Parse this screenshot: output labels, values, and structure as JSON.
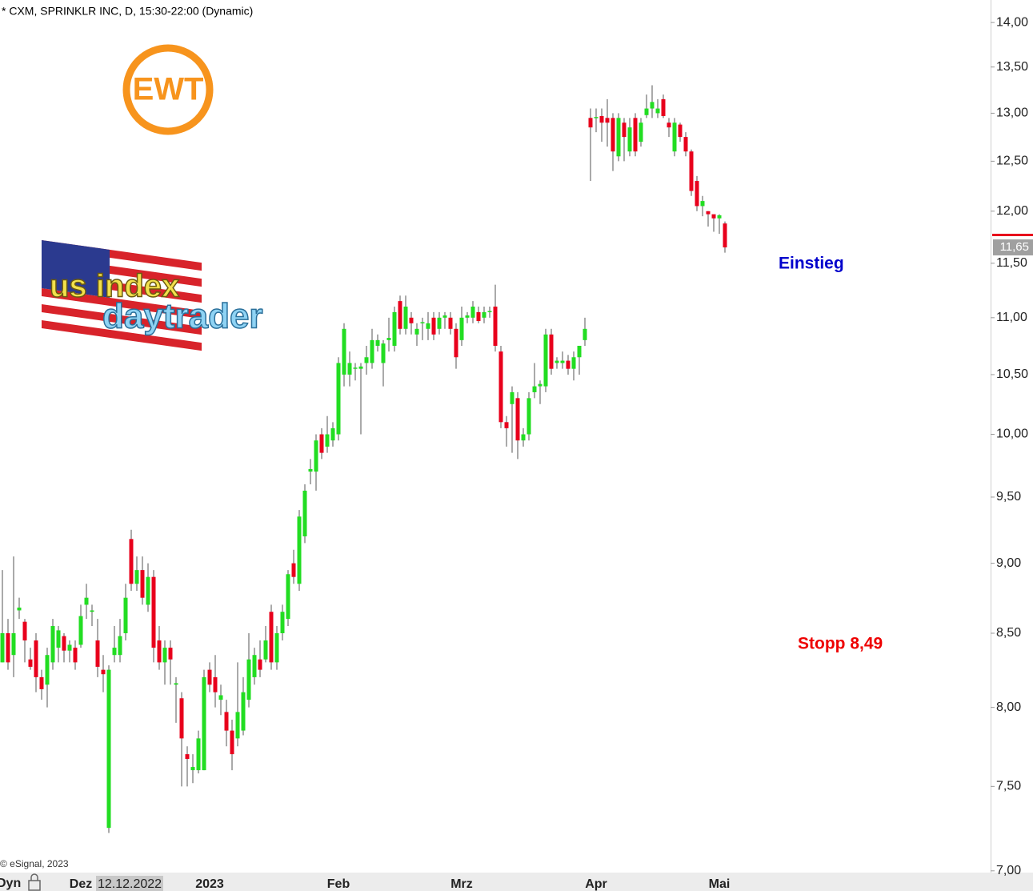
{
  "chart_data": {
    "type": "candlestick",
    "title": "* CXM, SPRINKLR INC, D, 15:30-22:00 (Dynamic)",
    "copyright": "© eSignal, 2023",
    "mode_label": "Dyn",
    "cursor_date": "12.12.2022",
    "annotations": [
      {
        "text": "Einstieg",
        "color": "#0000cc"
      },
      {
        "text": "Stopp 8,49",
        "color": "#ee0000"
      }
    ],
    "logos": {
      "ewt": "EWT",
      "line1": "us index",
      "line2": "daytrader"
    },
    "last_price": {
      "value": 11.65,
      "label": "11,65"
    },
    "log_scale": true,
    "up_color": "#22dd22",
    "down_color": "#e8001c",
    "ylim": [
      6.99,
      14.26
    ],
    "yticks": [
      {
        "value": 7,
        "label": "7,00"
      },
      {
        "value": 7.5,
        "label": "7,50"
      },
      {
        "value": 8,
        "label": "8,00"
      },
      {
        "value": 8.5,
        "label": "8,50"
      },
      {
        "value": 9,
        "label": "9,00"
      },
      {
        "value": 9.5,
        "label": "9,50"
      },
      {
        "value": 10,
        "label": "10,00"
      },
      {
        "value": 10.5,
        "label": "10,50"
      },
      {
        "value": 11,
        "label": "11,00"
      },
      {
        "value": 11.5,
        "label": "11,50"
      },
      {
        "value": 12,
        "label": "12,00"
      },
      {
        "value": 12.5,
        "label": "12,50"
      },
      {
        "value": 13,
        "label": "13,00"
      },
      {
        "value": 13.5,
        "label": "13,50"
      },
      {
        "value": 14,
        "label": "14,00"
      }
    ],
    "categories": [
      null,
      null,
      null,
      null,
      null,
      null,
      null,
      null,
      null,
      null,
      null,
      null,
      null,
      null,
      "Dez",
      null,
      null,
      null,
      null,
      null,
      null,
      null,
      null,
      null,
      null,
      null,
      null,
      null,
      null,
      null,
      null,
      null,
      null,
      null,
      null,
      null,
      null,
      "2023",
      null,
      null,
      null,
      null,
      null,
      null,
      null,
      null,
      null,
      null,
      null,
      null,
      null,
      null,
      null,
      null,
      null,
      null,
      null,
      null,
      null,
      null,
      "Feb",
      null,
      null,
      null,
      null,
      null,
      null,
      null,
      null,
      null,
      null,
      null,
      null,
      null,
      null,
      null,
      null,
      null,
      null,
      null,
      null,
      null,
      "Mrz",
      null,
      null,
      null,
      null,
      null,
      null,
      null,
      null,
      null,
      null,
      null,
      null,
      null,
      null,
      null,
      null,
      null,
      null,
      null,
      null,
      null,
      null,
      null,
      "Apr",
      null,
      null,
      null,
      null,
      null,
      null,
      null,
      null,
      null,
      null,
      null,
      null,
      null,
      null,
      null,
      null,
      null,
      null,
      null,
      null,
      null,
      "Mai",
      null
    ],
    "open": [
      8.3,
      8.5,
      8.35,
      8.66,
      8.58,
      8.32,
      8.45,
      8.2,
      8.15,
      8.3,
      8.4,
      8.48,
      8.38,
      8.4,
      8.42,
      8.7,
      8.65,
      8.45,
      8.25,
      7.25,
      8.35,
      8.35,
      8.5,
      9.18,
      8.85,
      8.95,
      8.7,
      8.9,
      8.45,
      8.3,
      8.4,
      8.15,
      8.06,
      7.7,
      7.6,
      7.6,
      7.6,
      8.25,
      8.2,
      8.05,
      7.97,
      7.85,
      7.8,
      7.85,
      8.05,
      8.2,
      8.32,
      8.32,
      8.65,
      8.3,
      8.5,
      8.6,
      9.0,
      8.85,
      9.2,
      9.7,
      9.7,
      10.0,
      9.9,
      9.95,
      10.0,
      10.5,
      10.5,
      10.55,
      10.55,
      10.6,
      10.6,
      10.75,
      10.6,
      10.8,
      10.75,
      11.15,
      10.9,
      11.0,
      10.85,
      10.95,
      10.9,
      11.0,
      10.9,
      11.0,
      11.0,
      10.9,
      10.8,
      11.0,
      11.0,
      11.05,
      11.0,
      11.05,
      11.1,
      10.7,
      10.1,
      10.25,
      10.3,
      9.95,
      10.0,
      10.35,
      10.4,
      10.4,
      10.85,
      10.6,
      10.6,
      10.62,
      10.55,
      10.65,
      10.8,
      12.95,
      12.95,
      12.97,
      12.95,
      12.95,
      12.55,
      12.9,
      12.6,
      12.95,
      12.7,
      12.98,
      13.05,
      13.0,
      13.15,
      12.9,
      12.6,
      12.88,
      12.75,
      12.6,
      12.3,
      12.05,
      12.0,
      11.97,
      11.93,
      11.88
    ],
    "high": [
      8.95,
      8.6,
      9.05,
      8.75,
      8.6,
      8.4,
      8.5,
      8.25,
      8.4,
      8.6,
      8.55,
      8.5,
      8.45,
      8.45,
      8.7,
      8.85,
      8.7,
      8.6,
      8.35,
      8.28,
      8.55,
      8.6,
      8.85,
      9.25,
      9.05,
      9.05,
      9.0,
      8.95,
      8.55,
      8.45,
      8.45,
      8.2,
      8.1,
      7.75,
      7.7,
      7.85,
      8.25,
      8.3,
      8.35,
      8.15,
      8.05,
      7.92,
      8.3,
      8.2,
      8.5,
      8.4,
      8.45,
      8.55,
      8.7,
      8.55,
      8.7,
      8.95,
      9.1,
      9.4,
      9.6,
      9.8,
      10.0,
      10.05,
      10.15,
      10.1,
      10.65,
      10.95,
      10.7,
      10.6,
      10.6,
      10.75,
      10.9,
      10.85,
      10.8,
      11.0,
      11.1,
      11.2,
      11.2,
      11.05,
      10.95,
      11.0,
      11.05,
      11.05,
      11.05,
      11.05,
      11.05,
      10.95,
      11.1,
      11.05,
      11.15,
      11.1,
      11.1,
      11.1,
      11.3,
      10.75,
      10.15,
      10.4,
      10.35,
      10.05,
      10.35,
      10.6,
      10.45,
      10.9,
      10.9,
      10.65,
      10.7,
      10.67,
      10.7,
      10.75,
      11.0,
      13.05,
      13.05,
      13.05,
      13.15,
      13.0,
      13.0,
      12.95,
      12.95,
      13.0,
      12.95,
      13.2,
      13.3,
      13.15,
      13.2,
      12.95,
      12.95,
      12.9,
      12.8,
      12.62,
      12.35,
      12.15,
      12.0,
      11.95,
      11.97,
      11.9
    ],
    "low": [
      8.3,
      8.25,
      8.2,
      8.6,
      8.3,
      8.25,
      8.1,
      8.05,
      8.0,
      8.25,
      8.3,
      8.3,
      8.3,
      8.25,
      8.4,
      8.6,
      8.55,
      8.2,
      8.1,
      7.22,
      8.3,
      8.3,
      8.45,
      8.8,
      8.8,
      8.7,
      8.65,
      8.3,
      8.25,
      8.15,
      8.15,
      7.9,
      7.5,
      7.5,
      7.52,
      7.58,
      7.6,
      8.1,
      8.0,
      7.95,
      7.75,
      7.6,
      7.75,
      7.82,
      8.0,
      8.15,
      8.2,
      8.3,
      8.25,
      8.25,
      8.45,
      8.55,
      8.85,
      8.8,
      9.15,
      9.6,
      9.55,
      9.8,
      9.85,
      9.9,
      9.95,
      10.4,
      10.4,
      10.45,
      10.0,
      10.5,
      10.55,
      10.7,
      10.4,
      10.7,
      10.7,
      10.85,
      10.85,
      10.85,
      10.75,
      10.8,
      10.8,
      10.8,
      10.85,
      10.9,
      10.85,
      10.55,
      10.75,
      10.95,
      10.95,
      10.95,
      10.95,
      11.0,
      10.7,
      10.05,
      9.9,
      9.85,
      9.8,
      9.9,
      9.95,
      10.3,
      10.25,
      10.35,
      10.5,
      10.55,
      10.55,
      10.5,
      10.45,
      10.5,
      10.75,
      12.3,
      12.8,
      12.7,
      12.65,
      12.4,
      12.5,
      12.5,
      12.55,
      12.55,
      12.65,
      12.95,
      12.95,
      12.95,
      12.95,
      12.75,
      12.55,
      12.7,
      12.55,
      12.15,
      12.0,
      11.95,
      11.85,
      11.8,
      11.78,
      11.6
    ],
    "close": [
      8.5,
      8.3,
      8.5,
      8.68,
      8.45,
      8.27,
      8.2,
      8.12,
      8.35,
      8.55,
      8.52,
      8.38,
      8.42,
      8.3,
      8.62,
      8.75,
      8.66,
      8.27,
      8.22,
      8.25,
      8.4,
      8.48,
      8.75,
      8.85,
      8.95,
      8.75,
      8.9,
      8.4,
      8.3,
      8.4,
      8.32,
      8.16,
      7.8,
      7.67,
      7.62,
      7.8,
      8.2,
      8.15,
      8.1,
      8.08,
      7.85,
      7.7,
      7.97,
      8.1,
      8.32,
      8.35,
      8.25,
      8.45,
      8.3,
      8.5,
      8.65,
      8.92,
      8.9,
      9.35,
      9.55,
      9.72,
      9.95,
      9.85,
      10.0,
      10.05,
      10.6,
      10.9,
      10.6,
      10.56,
      10.57,
      10.65,
      10.8,
      10.8,
      10.77,
      10.82,
      11.05,
      10.9,
      11.1,
      10.95,
      10.9,
      10.96,
      10.95,
      10.85,
      11.0,
      11.02,
      10.9,
      10.65,
      11.0,
      11.02,
      11.1,
      10.97,
      11.05,
      11.06,
      10.75,
      10.1,
      10.05,
      10.35,
      9.95,
      10.0,
      10.3,
      10.4,
      10.42,
      10.85,
      10.55,
      10.62,
      10.62,
      10.55,
      10.65,
      10.75,
      10.9,
      12.85,
      12.96,
      12.9,
      12.9,
      12.6,
      12.95,
      12.75,
      12.85,
      12.6,
      12.9,
      13.05,
      13.12,
      13.05,
      12.97,
      12.85,
      12.9,
      12.75,
      12.6,
      12.2,
      12.05,
      12.1,
      11.97,
      11.93,
      11.96,
      11.65
    ]
  }
}
